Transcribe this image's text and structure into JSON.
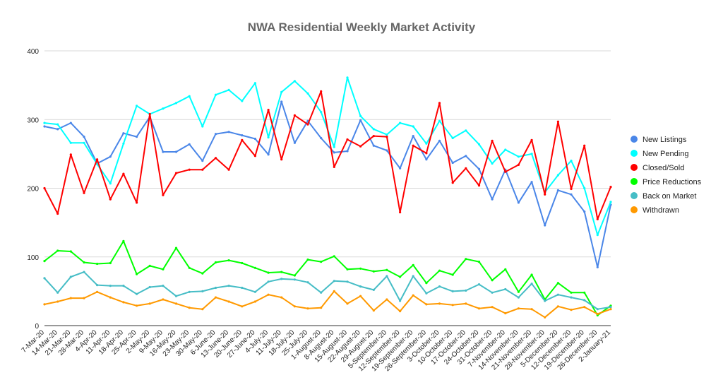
{
  "chart_data": {
    "type": "line",
    "title": "NWA Residential Weekly Market Activity",
    "xlabel": "",
    "ylabel": "",
    "ylim": [
      0,
      400
    ],
    "y_ticks": [
      0,
      100,
      200,
      300,
      400
    ],
    "grid": true,
    "legend_position": "right",
    "categories": [
      "7-Mar-20",
      "14-Mar-20",
      "21-Mar-20",
      "28-Mar-20",
      "4-Apr-20",
      "11-Apr-20",
      "18-Apr-20",
      "25-Apr-20",
      "2-May-20",
      "9-May-20",
      "16-May-20",
      "23-May-20",
      "30-May-20",
      "6-June-20",
      "13-June-20",
      "20-June-20",
      "27-June-20",
      "4-July-20",
      "11-July-20",
      "18-July-20",
      "25-July-20",
      "1-August-20",
      "8-August-20",
      "15-August-20",
      "22-August-20",
      "29-August-20",
      "5-September-20",
      "12-September-20",
      "19-September-20",
      "26-September-20",
      "3-October-20",
      "10-October-20",
      "17-October-20",
      "24-October-20",
      "31-October-20",
      "7-November-20",
      "14-November-20",
      "21-November-20",
      "28-November-20",
      "5-December-20",
      "12-December-20",
      "19-December-20",
      "26-December-20",
      "2-January-21"
    ],
    "series": [
      {
        "name": "New Listings",
        "color": "#4a86e8",
        "values": [
          290,
          286,
          295,
          275,
          236,
          246,
          280,
          275,
          304,
          253,
          253,
          264,
          240,
          279,
          282,
          277,
          272,
          249,
          326,
          266,
          298,
          273,
          252,
          254,
          299,
          262,
          255,
          229,
          276,
          242,
          269,
          237,
          247,
          228,
          184,
          227,
          179,
          209,
          146,
          197,
          191,
          166,
          85,
          176
        ]
      },
      {
        "name": "New Pending",
        "color": "#00ffff",
        "values": [
          295,
          293,
          266,
          266,
          235,
          207,
          265,
          320,
          308,
          316,
          324,
          334,
          290,
          336,
          343,
          327,
          353,
          274,
          340,
          356,
          338,
          311,
          260,
          361,
          305,
          286,
          278,
          295,
          290,
          265,
          298,
          273,
          284,
          264,
          236,
          256,
          246,
          250,
          194,
          219,
          240,
          200,
          132,
          180
        ]
      },
      {
        "name": "Closed/Sold",
        "color": "#ff0000",
        "values": [
          200,
          163,
          249,
          193,
          242,
          184,
          221,
          179,
          308,
          190,
          222,
          227,
          227,
          244,
          227,
          270,
          247,
          314,
          242,
          306,
          293,
          341,
          231,
          271,
          261,
          276,
          275,
          165,
          262,
          251,
          324,
          208,
          229,
          204,
          269,
          224,
          234,
          270,
          191,
          297,
          199,
          262,
          155,
          202
        ]
      },
      {
        "name": "Price Reductions",
        "color": "#00ff00",
        "values": [
          94,
          109,
          108,
          92,
          90,
          91,
          123,
          75,
          87,
          82,
          113,
          84,
          76,
          92,
          95,
          91,
          84,
          77,
          78,
          73,
          96,
          93,
          101,
          82,
          83,
          79,
          81,
          71,
          88,
          62,
          80,
          74,
          97,
          93,
          66,
          82,
          49,
          74,
          38,
          62,
          48,
          48,
          15,
          29
        ]
      },
      {
        "name": "Back on Market",
        "color": "#46bdc6",
        "values": [
          69,
          48,
          71,
          78,
          59,
          58,
          58,
          46,
          56,
          58,
          43,
          49,
          50,
          55,
          58,
          55,
          49,
          64,
          68,
          67,
          63,
          48,
          65,
          64,
          57,
          52,
          72,
          36,
          72,
          47,
          57,
          50,
          51,
          60,
          48,
          53,
          41,
          61,
          36,
          45,
          41,
          37,
          24,
          27
        ]
      },
      {
        "name": "Withdrawn",
        "color": "#ff9900",
        "values": [
          31,
          35,
          40,
          40,
          49,
          41,
          34,
          29,
          32,
          38,
          32,
          26,
          24,
          41,
          35,
          28,
          35,
          45,
          41,
          28,
          25,
          26,
          50,
          32,
          43,
          22,
          38,
          21,
          44,
          31,
          32,
          30,
          32,
          25,
          27,
          18,
          25,
          24,
          12,
          28,
          23,
          27,
          17,
          24
        ]
      }
    ]
  }
}
